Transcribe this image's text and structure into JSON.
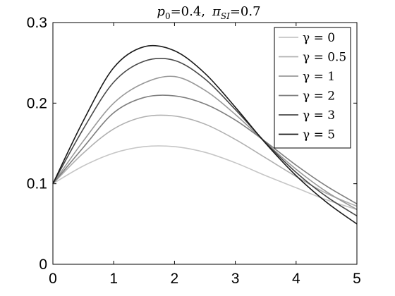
{
  "chart_data": {
    "type": "line",
    "title_parts": {
      "p_sym": "p",
      "p_sub": "0",
      "p_val": "=0.4,",
      "pi_sym": "π",
      "pi_sub": "SI",
      "pi_val": "=0.7"
    },
    "xlabel": "",
    "ylabel": "",
    "xlim": [
      0,
      5
    ],
    "ylim": [
      0,
      0.3
    ],
    "xticks": [
      0,
      1,
      2,
      3,
      4,
      5
    ],
    "yticks": [
      0,
      0.1,
      0.2,
      0.3
    ],
    "x": [
      0,
      0.5,
      1,
      1.5,
      2,
      2.5,
      3,
      3.5,
      4,
      4.5,
      5
    ],
    "series": [
      {
        "name": "γ = 0",
        "color": "#c6c6c6",
        "values": [
          0.1,
          0.122,
          0.138,
          0.146,
          0.146,
          0.139,
          0.126,
          0.11,
          0.095,
          0.08,
          0.068
        ]
      },
      {
        "name": "γ = 0.5",
        "color": "#b0b0b0",
        "values": [
          0.1,
          0.138,
          0.168,
          0.183,
          0.184,
          0.174,
          0.155,
          0.132,
          0.109,
          0.088,
          0.072
        ]
      },
      {
        "name": "γ = 1",
        "color": "#999999",
        "values": [
          0.1,
          0.153,
          0.2,
          0.225,
          0.233,
          0.216,
          0.186,
          0.151,
          0.118,
          0.09,
          0.068
        ]
      },
      {
        "name": "γ = 2",
        "color": "#7f7f7f",
        "values": [
          0.1,
          0.145,
          0.188,
          0.207,
          0.209,
          0.199,
          0.179,
          0.152,
          0.123,
          0.097,
          0.075
        ]
      },
      {
        "name": "γ = 3",
        "color": "#4a4a4a",
        "values": [
          0.1,
          0.168,
          0.226,
          0.252,
          0.253,
          0.23,
          0.192,
          0.151,
          0.114,
          0.084,
          0.06
        ]
      },
      {
        "name": "γ = 5",
        "color": "#1a1a1a",
        "values": [
          0.1,
          0.178,
          0.244,
          0.27,
          0.265,
          0.237,
          0.195,
          0.15,
          0.11,
          0.077,
          0.05
        ]
      }
    ],
    "legend_position": "top-right",
    "grid": false
  }
}
